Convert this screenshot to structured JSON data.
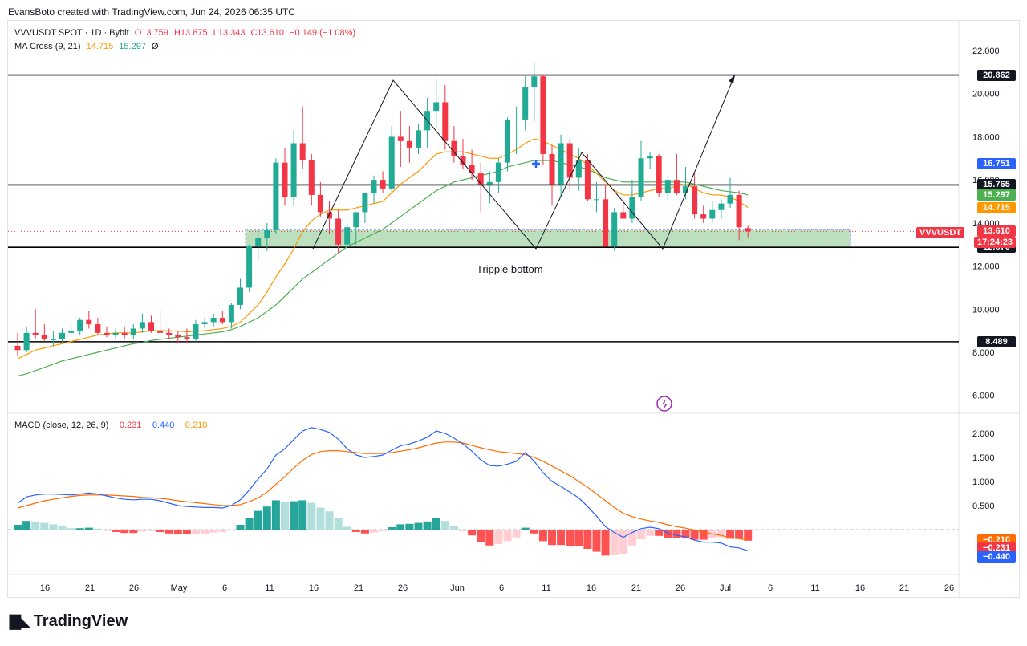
{
  "header": {
    "created_by": "EvansBoto created with TradingView.com, Jun 24, 2026 06:35 UTC"
  },
  "legend": {
    "symbol": "VVVUSDT SPOT · 1D · Bybit",
    "o": "O13.759",
    "h": "H13.875",
    "l": "L13.343",
    "c": "C13.610",
    "chg": "−0.149 (−1.08%)",
    "ma_label": "MA Cross (9, 21)",
    "ma_fast": "14.715",
    "ma_slow": "15.297",
    "ma_zero": "Ø",
    "macd_label": "MACD (close, 12, 26, 9)",
    "macd_hist": "−0.231",
    "macd_line": "−0.440",
    "macd_signal": "−0.210"
  },
  "annotation": "Tripple bottom",
  "price_tags": [
    {
      "text": "20.862",
      "bg": "#131722"
    },
    {
      "text": "16.751",
      "bg": "#2962ff"
    },
    {
      "text": "15.765",
      "bg": "#131722"
    },
    {
      "text": "15.297",
      "bg": "#4caf50"
    },
    {
      "text": "14.715",
      "bg": "#ff9800"
    },
    {
      "text": "13.610",
      "bg": "#f23645"
    },
    {
      "text": "12.870",
      "bg": "#131722"
    },
    {
      "text": "8.489",
      "bg": "#131722"
    }
  ],
  "countdown": "17:24:23",
  "symbol_tag": "VVVUSDT",
  "macd_tags": [
    {
      "text": "−0.210",
      "bg": "#ff6d00"
    },
    {
      "text": "−0.231",
      "bg": "#f23645"
    },
    {
      "text": "−0.440",
      "bg": "#2962ff"
    }
  ],
  "footer": {
    "brand": "TradingView"
  },
  "colors": {
    "up": "#22ab94",
    "down": "#f23645",
    "ma_fast": "#ff9800",
    "ma_slow": "#4caf50",
    "macd": "#2962ff",
    "signal": "#ff6d00",
    "zone": "#a5d6a7"
  },
  "chart_data": [
    {
      "type": "candlestick",
      "title": "VVVUSDT SPOT · 1D · Bybit",
      "y_ticks": [
        "22.000",
        "20.000",
        "18.000",
        "16.000",
        "14.000",
        "12.000",
        "10.000",
        "8.000",
        "6.000"
      ],
      "x_ticks": [
        "16",
        "21",
        "26",
        "May",
        "6",
        "11",
        "16",
        "21",
        "26",
        "Jun",
        "6",
        "11",
        "16",
        "21",
        "26",
        "Jul",
        "6",
        "11",
        "16",
        "21",
        "26"
      ],
      "ylim": [
        5.2,
        23.0
      ],
      "horizontal_levels": [
        20.862,
        15.765,
        12.87,
        8.489
      ],
      "support_zone": [
        12.87,
        13.7
      ],
      "candles": [
        [
          8.3,
          8.9,
          7.8,
          8.1
        ],
        [
          8.1,
          9.2,
          8.0,
          8.9
        ],
        [
          8.9,
          10.0,
          8.6,
          8.8
        ],
        [
          8.8,
          9.3,
          8.5,
          8.6
        ],
        [
          8.6,
          9.0,
          8.3,
          8.6
        ],
        [
          8.6,
          9.1,
          8.4,
          8.9
        ],
        [
          8.9,
          9.4,
          8.7,
          9.0
        ],
        [
          9.0,
          9.6,
          8.8,
          9.5
        ],
        [
          9.5,
          9.9,
          9.1,
          9.3
        ],
        [
          9.3,
          9.6,
          8.8,
          8.9
        ],
        [
          8.9,
          9.2,
          8.7,
          8.8
        ],
        [
          8.8,
          9.1,
          8.6,
          8.9
        ],
        [
          8.9,
          9.2,
          8.6,
          8.8
        ],
        [
          8.8,
          9.3,
          8.6,
          9.1
        ],
        [
          9.1,
          9.8,
          8.9,
          9.4
        ],
        [
          9.4,
          9.7,
          8.9,
          9.0
        ],
        [
          9.0,
          10.0,
          8.9,
          8.9
        ],
        [
          8.9,
          9.1,
          8.6,
          8.8
        ],
        [
          8.8,
          9.0,
          8.4,
          8.7
        ],
        [
          8.7,
          9.1,
          8.4,
          8.6
        ],
        [
          8.6,
          9.5,
          8.5,
          9.3
        ],
        [
          9.3,
          9.6,
          9.1,
          9.4
        ],
        [
          9.4,
          9.8,
          9.2,
          9.6
        ],
        [
          9.6,
          9.9,
          9.3,
          9.4
        ],
        [
          9.4,
          10.3,
          9.1,
          10.2
        ],
        [
          10.2,
          11.4,
          10.0,
          11.0
        ],
        [
          11.0,
          13.0,
          10.8,
          12.9
        ],
        [
          12.9,
          13.6,
          12.3,
          13.3
        ],
        [
          13.3,
          14.0,
          12.7,
          13.7
        ],
        [
          13.7,
          17.0,
          13.5,
          16.8
        ],
        [
          16.8,
          17.5,
          14.8,
          15.2
        ],
        [
          15.2,
          18.3,
          14.8,
          17.7
        ],
        [
          17.7,
          19.4,
          16.5,
          16.9
        ],
        [
          16.9,
          17.2,
          14.8,
          15.3
        ],
        [
          15.3,
          15.9,
          14.3,
          14.5
        ],
        [
          14.5,
          15.0,
          13.5,
          14.2
        ],
        [
          14.2,
          14.6,
          12.6,
          13.0
        ],
        [
          13.0,
          14.0,
          12.8,
          13.8
        ],
        [
          13.8,
          14.4,
          13.0,
          14.5
        ],
        [
          14.5,
          15.3,
          14.0,
          15.4
        ],
        [
          15.4,
          16.2,
          14.9,
          16.0
        ],
        [
          16.0,
          16.4,
          15.4,
          15.6
        ],
        [
          15.6,
          18.5,
          15.4,
          18.0
        ],
        [
          18.0,
          19.2,
          16.6,
          17.8
        ],
        [
          17.8,
          18.5,
          16.8,
          17.5
        ],
        [
          17.5,
          18.6,
          17.2,
          18.3
        ],
        [
          18.3,
          19.8,
          17.5,
          19.2
        ],
        [
          19.2,
          20.7,
          18.4,
          19.6
        ],
        [
          19.6,
          20.4,
          17.4,
          17.8
        ],
        [
          17.8,
          18.5,
          16.8,
          17.1
        ],
        [
          17.1,
          17.9,
          16.5,
          16.7
        ],
        [
          16.7,
          17.4,
          16.0,
          16.3
        ],
        [
          16.3,
          16.8,
          14.5,
          15.8
        ],
        [
          15.8,
          16.4,
          14.9,
          15.9
        ],
        [
          15.9,
          17.0,
          15.4,
          16.8
        ],
        [
          16.8,
          18.9,
          16.4,
          18.8
        ],
        [
          18.8,
          19.4,
          17.2,
          18.8
        ],
        [
          18.8,
          20.8,
          18.3,
          20.3
        ],
        [
          20.3,
          21.4,
          18.7,
          20.8
        ],
        [
          20.8,
          20.9,
          16.7,
          17.2
        ],
        [
          17.2,
          17.6,
          14.8,
          15.8
        ],
        [
          15.8,
          18.1,
          15.2,
          17.7
        ],
        [
          17.7,
          17.9,
          15.6,
          16.1
        ],
        [
          16.1,
          17.5,
          15.5,
          16.9
        ],
        [
          16.9,
          17.2,
          15.0,
          15.1
        ],
        [
          15.1,
          15.9,
          14.5,
          15.1
        ],
        [
          15.1,
          15.8,
          12.9,
          12.9
        ],
        [
          12.9,
          14.7,
          12.7,
          14.5
        ],
        [
          14.5,
          15.0,
          14.3,
          14.2
        ],
        [
          14.2,
          16.0,
          14.0,
          15.2
        ],
        [
          15.2,
          17.8,
          15.0,
          17.0
        ],
        [
          17.0,
          17.3,
          16.5,
          17.1
        ],
        [
          17.1,
          17.2,
          15.2,
          15.4
        ],
        [
          15.4,
          16.2,
          15.0,
          16.0
        ],
        [
          16.0,
          17.2,
          15.3,
          15.4
        ],
        [
          15.4,
          16.6,
          15.1,
          15.7
        ],
        [
          15.7,
          16.3,
          14.2,
          14.4
        ],
        [
          14.4,
          14.8,
          14.0,
          14.2
        ],
        [
          14.2,
          15.0,
          14.0,
          14.6
        ],
        [
          14.6,
          15.1,
          14.2,
          14.9
        ],
        [
          14.9,
          16.1,
          14.7,
          15.3
        ],
        [
          15.3,
          15.5,
          13.2,
          13.8
        ],
        [
          13.759,
          13.875,
          13.343,
          13.61
        ]
      ],
      "ma_fast": [
        7.7,
        7.9,
        8.1,
        8.2,
        8.3,
        8.4,
        8.5,
        8.6,
        8.7,
        8.8,
        8.85,
        8.9,
        8.9,
        8.9,
        8.95,
        9.0,
        9.0,
        9.0,
        8.98,
        8.95,
        8.97,
        9.0,
        9.05,
        9.1,
        9.2,
        9.4,
        9.8,
        10.2,
        10.8,
        11.5,
        12.1,
        12.8,
        13.6,
        14.1,
        14.4,
        14.6,
        14.6,
        14.6,
        14.7,
        14.8,
        14.9,
        15.0,
        15.4,
        15.8,
        16.1,
        16.4,
        16.8,
        17.2,
        17.3,
        17.3,
        17.3,
        17.2,
        17.1,
        17.0,
        17.0,
        17.2,
        17.4,
        17.7,
        17.9,
        17.8,
        17.6,
        17.4,
        17.2,
        17.0,
        16.7,
        16.3,
        15.9,
        15.5,
        15.3,
        15.3,
        15.4,
        15.5,
        15.6,
        15.6,
        15.7,
        15.8,
        15.6,
        15.4,
        15.3,
        15.3,
        15.2,
        15.0,
        14.72
      ],
      "ma_slow": [
        6.9,
        7.0,
        7.15,
        7.3,
        7.45,
        7.6,
        7.7,
        7.8,
        7.9,
        8.0,
        8.1,
        8.2,
        8.3,
        8.4,
        8.45,
        8.55,
        8.6,
        8.65,
        8.7,
        8.75,
        8.8,
        8.85,
        8.9,
        8.95,
        9.05,
        9.2,
        9.4,
        9.6,
        9.9,
        10.2,
        10.6,
        11.0,
        11.4,
        11.7,
        12.0,
        12.3,
        12.6,
        12.9,
        13.1,
        13.3,
        13.5,
        13.7,
        14.0,
        14.3,
        14.6,
        14.9,
        15.2,
        15.5,
        15.7,
        15.9,
        16.0,
        16.1,
        16.2,
        16.3,
        16.4,
        16.6,
        16.7,
        16.8,
        16.9,
        16.9,
        16.9,
        16.8,
        16.7,
        16.6,
        16.5,
        16.3,
        16.1,
        16.0,
        15.9,
        15.9,
        15.9,
        15.9,
        15.9,
        15.9,
        15.9,
        15.9,
        15.8,
        15.7,
        15.6,
        15.5,
        15.45,
        15.4,
        15.3
      ]
    },
    {
      "type": "line",
      "title": "MACD (close, 12, 26, 9)",
      "y_ticks": [
        "2.000",
        "1.500",
        "1.000",
        "0.500"
      ],
      "ylim": [
        -1.0,
        2.4
      ],
      "macd": [
        0.55,
        0.68,
        0.72,
        0.74,
        0.74,
        0.73,
        0.72,
        0.74,
        0.76,
        0.74,
        0.7,
        0.66,
        0.63,
        0.62,
        0.63,
        0.63,
        0.6,
        0.55,
        0.5,
        0.48,
        0.47,
        0.46,
        0.46,
        0.45,
        0.5,
        0.62,
        0.82,
        1.05,
        1.26,
        1.55,
        1.68,
        1.87,
        2.05,
        2.12,
        2.08,
        2.02,
        1.88,
        1.68,
        1.55,
        1.5,
        1.52,
        1.55,
        1.65,
        1.74,
        1.78,
        1.84,
        1.92,
        2.05,
        2.0,
        1.9,
        1.78,
        1.63,
        1.45,
        1.33,
        1.32,
        1.36,
        1.42,
        1.6,
        1.42,
        1.18,
        1.0,
        0.9,
        0.78,
        0.66,
        0.48,
        0.28,
        0.06,
        -0.06,
        -0.16,
        -0.06,
        0.02,
        0.05,
        0.02,
        -0.07,
        -0.12,
        -0.15,
        -0.22,
        -0.26,
        -0.26,
        -0.28,
        -0.36,
        -0.38,
        -0.44
      ],
      "signal": [
        0.45,
        0.5,
        0.55,
        0.6,
        0.63,
        0.66,
        0.69,
        0.71,
        0.72,
        0.72,
        0.72,
        0.71,
        0.7,
        0.69,
        0.67,
        0.66,
        0.65,
        0.63,
        0.6,
        0.58,
        0.56,
        0.54,
        0.52,
        0.5,
        0.5,
        0.52,
        0.58,
        0.66,
        0.78,
        0.94,
        1.1,
        1.28,
        1.44,
        1.56,
        1.62,
        1.64,
        1.64,
        1.62,
        1.6,
        1.58,
        1.58,
        1.58,
        1.6,
        1.63,
        1.66,
        1.7,
        1.75,
        1.8,
        1.82,
        1.82,
        1.8,
        1.75,
        1.7,
        1.66,
        1.62,
        1.6,
        1.58,
        1.56,
        1.5,
        1.42,
        1.32,
        1.22,
        1.12,
        1.0,
        0.88,
        0.74,
        0.6,
        0.46,
        0.34,
        0.27,
        0.22,
        0.18,
        0.15,
        0.1,
        0.06,
        0.03,
        -0.01,
        -0.05,
        -0.09,
        -0.12,
        -0.17,
        -0.19,
        -0.21
      ],
      "histogram": [
        0.1,
        0.18,
        0.17,
        0.14,
        0.11,
        0.07,
        0.03,
        0.03,
        0.04,
        0.02,
        -0.02,
        -0.05,
        -0.07,
        -0.07,
        -0.04,
        -0.03,
        -0.05,
        -0.08,
        -0.1,
        -0.1,
        -0.09,
        -0.08,
        -0.06,
        -0.05,
        0.0,
        0.1,
        0.24,
        0.39,
        0.48,
        0.61,
        0.58,
        0.59,
        0.61,
        0.56,
        0.46,
        0.38,
        0.24,
        0.06,
        -0.05,
        -0.08,
        -0.06,
        -0.03,
        0.05,
        0.11,
        0.12,
        0.14,
        0.17,
        0.25,
        0.18,
        0.08,
        -0.02,
        -0.12,
        -0.25,
        -0.33,
        -0.3,
        -0.24,
        -0.16,
        0.04,
        -0.08,
        -0.24,
        -0.32,
        -0.32,
        -0.34,
        -0.34,
        -0.4,
        -0.46,
        -0.54,
        -0.52,
        -0.5,
        -0.33,
        -0.2,
        -0.13,
        -0.13,
        -0.17,
        -0.18,
        -0.18,
        -0.21,
        -0.21,
        -0.17,
        -0.16,
        -0.19,
        -0.19,
        -0.23
      ]
    }
  ]
}
